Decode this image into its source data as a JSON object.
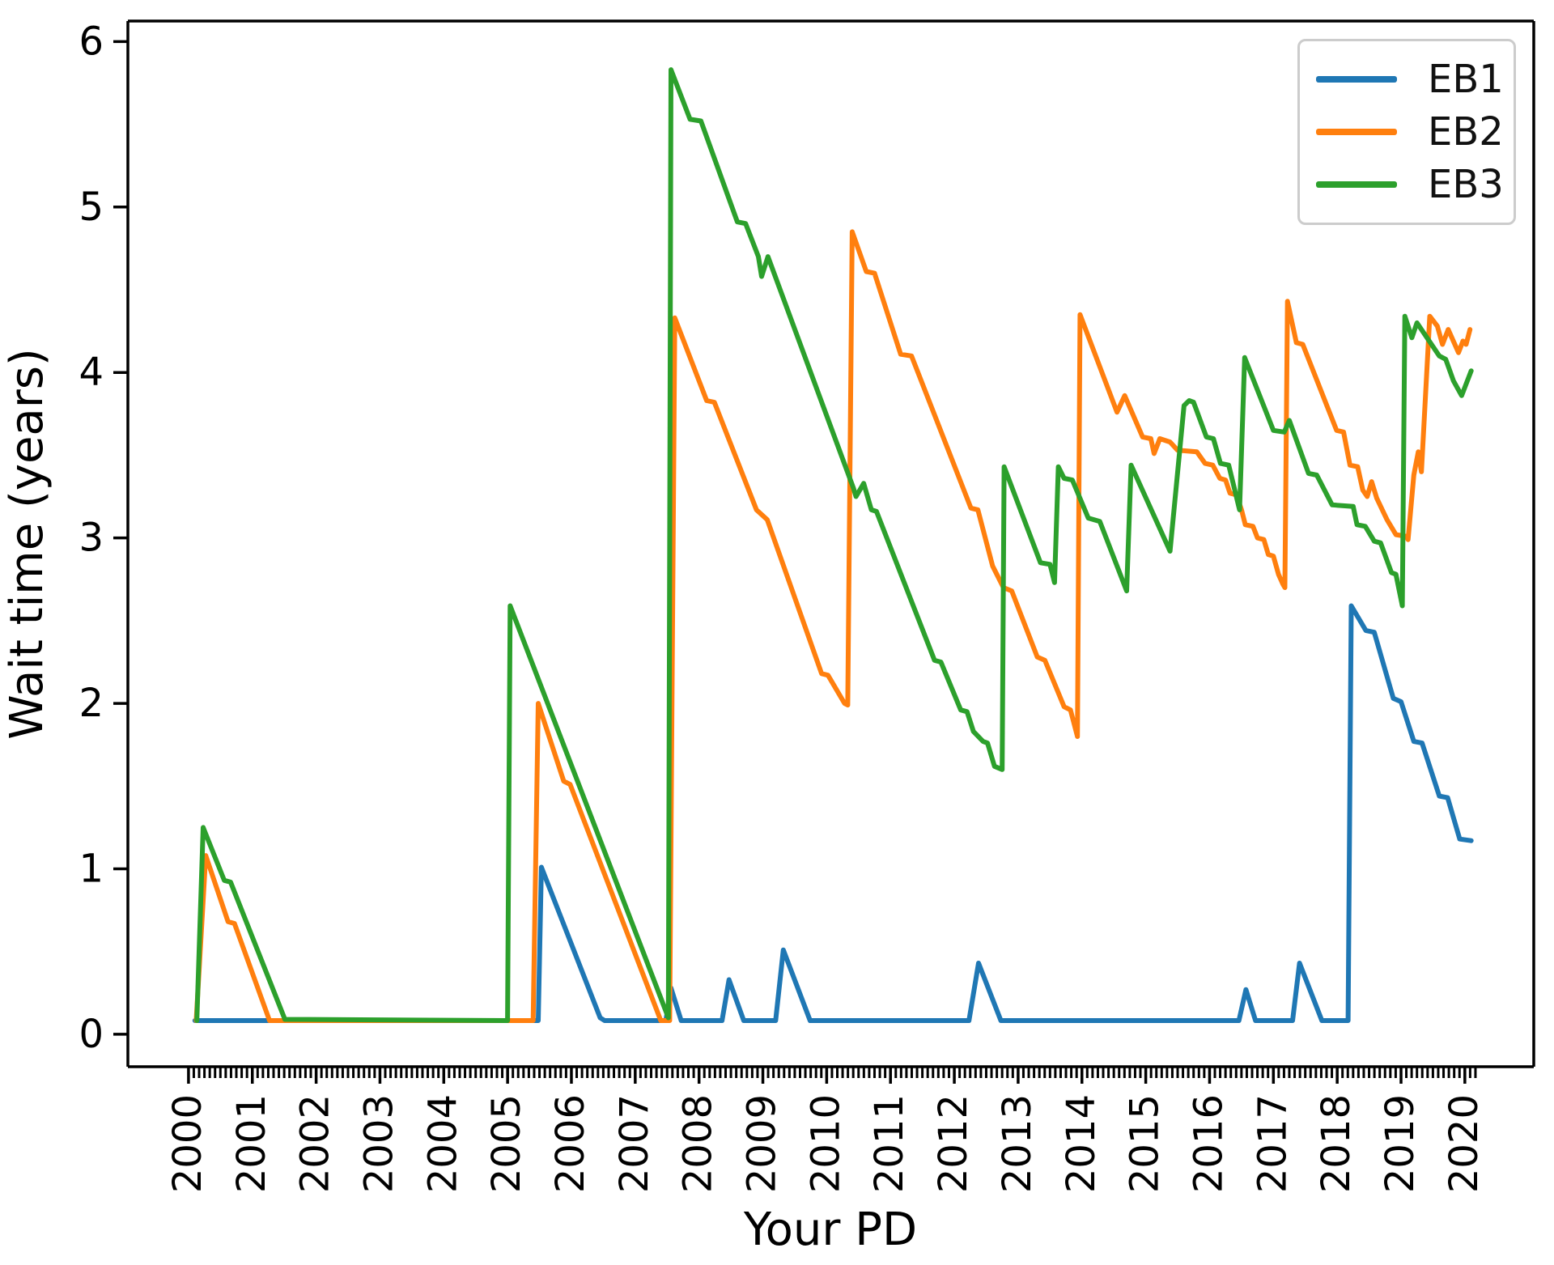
{
  "figure": {
    "background": "#ffffff"
  },
  "axes": {
    "xlabel": "Your PD",
    "ylabel": "Wait time (years)",
    "y_tick_labels": [
      "0",
      "1",
      "2",
      "3",
      "4",
      "5",
      "6"
    ],
    "x_tick_labels": [
      "2000",
      "2001",
      "2002",
      "2003",
      "2004",
      "2005",
      "2006",
      "2007",
      "2008",
      "2009",
      "2010",
      "2011",
      "2012",
      "2013",
      "2014",
      "2015",
      "2016",
      "2017",
      "2018",
      "2019",
      "2020"
    ]
  },
  "legend": {
    "position": "upper right",
    "items": [
      {
        "label": "EB1",
        "color": "#1f77b4"
      },
      {
        "label": "EB2",
        "color": "#ff7f0e"
      },
      {
        "label": "EB3",
        "color": "#2ca02c"
      }
    ]
  },
  "chart_data": {
    "type": "line",
    "title": "",
    "xlabel": "Your PD",
    "ylabel": "Wait time (years)",
    "xlim": [
      1999.05,
      2021.08
    ],
    "ylim": [
      -0.196,
      6.124
    ],
    "x_ticks": [
      2000,
      2001,
      2002,
      2003,
      2004,
      2005,
      2006,
      2007,
      2008,
      2009,
      2010,
      2011,
      2012,
      2013,
      2014,
      2015,
      2016,
      2017,
      2018,
      2019,
      2020
    ],
    "y_ticks": [
      0,
      1,
      2,
      3,
      4,
      5,
      6
    ],
    "x_minor_tick_step_years": 0.083333,
    "x_minor_tick_range": [
      2000.083,
      2020.17
    ],
    "grid": false,
    "line_width": 6,
    "series": [
      {
        "name": "EB1",
        "color": "#1f77b4",
        "points": [
          [
            2000.1,
            0.083
          ],
          [
            2005.48,
            0.083
          ],
          [
            2005.53,
            1.01
          ],
          [
            2006.45,
            0.1
          ],
          [
            2006.52,
            0.083
          ],
          [
            2007.48,
            0.083
          ],
          [
            2007.56,
            0.28
          ],
          [
            2007.72,
            0.083
          ],
          [
            2008.36,
            0.083
          ],
          [
            2008.47,
            0.33
          ],
          [
            2008.7,
            0.083
          ],
          [
            2009.2,
            0.083
          ],
          [
            2009.32,
            0.51
          ],
          [
            2009.74,
            0.083
          ],
          [
            2012.23,
            0.083
          ],
          [
            2012.38,
            0.43
          ],
          [
            2012.73,
            0.083
          ],
          [
            2016.46,
            0.083
          ],
          [
            2016.57,
            0.27
          ],
          [
            2016.72,
            0.083
          ],
          [
            2017.3,
            0.083
          ],
          [
            2017.41,
            0.43
          ],
          [
            2017.76,
            0.083
          ],
          [
            2018.17,
            0.083
          ],
          [
            2018.22,
            2.59
          ],
          [
            2018.45,
            2.44
          ],
          [
            2018.58,
            2.43
          ],
          [
            2018.88,
            2.03
          ],
          [
            2019.0,
            2.01
          ],
          [
            2019.2,
            1.77
          ],
          [
            2019.33,
            1.76
          ],
          [
            2019.6,
            1.44
          ],
          [
            2019.73,
            1.43
          ],
          [
            2019.92,
            1.18
          ],
          [
            2020.1,
            1.17
          ]
        ]
      },
      {
        "name": "EB2",
        "color": "#ff7f0e",
        "points": [
          [
            2000.12,
            0.083
          ],
          [
            2000.27,
            1.08
          ],
          [
            2000.62,
            0.68
          ],
          [
            2000.72,
            0.67
          ],
          [
            2001.27,
            0.083
          ],
          [
            2005.4,
            0.083
          ],
          [
            2005.48,
            2.0
          ],
          [
            2005.88,
            1.53
          ],
          [
            2005.98,
            1.51
          ],
          [
            2007.4,
            0.083
          ],
          [
            2007.54,
            0.083
          ],
          [
            2007.62,
            4.33
          ],
          [
            2008.12,
            3.83
          ],
          [
            2008.24,
            3.82
          ],
          [
            2008.9,
            3.17
          ],
          [
            2009.07,
            3.11
          ],
          [
            2009.92,
            2.18
          ],
          [
            2010.02,
            2.17
          ],
          [
            2010.28,
            2.0
          ],
          [
            2010.33,
            1.99
          ],
          [
            2010.4,
            4.85
          ],
          [
            2010.62,
            4.61
          ],
          [
            2010.75,
            4.6
          ],
          [
            2011.16,
            4.11
          ],
          [
            2011.33,
            4.1
          ],
          [
            2012.26,
            3.18
          ],
          [
            2012.37,
            3.17
          ],
          [
            2012.6,
            2.83
          ],
          [
            2012.77,
            2.7
          ],
          [
            2012.9,
            2.68
          ],
          [
            2013.3,
            2.28
          ],
          [
            2013.42,
            2.26
          ],
          [
            2013.72,
            1.98
          ],
          [
            2013.82,
            1.96
          ],
          [
            2013.93,
            1.8
          ],
          [
            2013.97,
            4.35
          ],
          [
            2014.55,
            3.76
          ],
          [
            2014.67,
            3.86
          ],
          [
            2014.95,
            3.61
          ],
          [
            2015.08,
            3.6
          ],
          [
            2015.13,
            3.51
          ],
          [
            2015.22,
            3.6
          ],
          [
            2015.38,
            3.58
          ],
          [
            2015.5,
            3.53
          ],
          [
            2015.8,
            3.52
          ],
          [
            2015.93,
            3.45
          ],
          [
            2016.05,
            3.44
          ],
          [
            2016.16,
            3.36
          ],
          [
            2016.25,
            3.35
          ],
          [
            2016.32,
            3.27
          ],
          [
            2016.42,
            3.26
          ],
          [
            2016.5,
            3.17
          ],
          [
            2016.56,
            3.08
          ],
          [
            2016.68,
            3.07
          ],
          [
            2016.75,
            3.0
          ],
          [
            2016.85,
            2.99
          ],
          [
            2016.92,
            2.9
          ],
          [
            2017.0,
            2.89
          ],
          [
            2017.08,
            2.78
          ],
          [
            2017.15,
            2.72
          ],
          [
            2017.18,
            2.7
          ],
          [
            2017.22,
            4.43
          ],
          [
            2017.36,
            4.18
          ],
          [
            2017.46,
            4.17
          ],
          [
            2017.99,
            3.65
          ],
          [
            2018.1,
            3.64
          ],
          [
            2018.2,
            3.44
          ],
          [
            2018.32,
            3.43
          ],
          [
            2018.4,
            3.29
          ],
          [
            2018.47,
            3.25
          ],
          [
            2018.54,
            3.34
          ],
          [
            2018.62,
            3.24
          ],
          [
            2018.78,
            3.11
          ],
          [
            2018.92,
            3.02
          ],
          [
            2019.08,
            3.01
          ],
          [
            2019.11,
            2.99
          ],
          [
            2019.2,
            3.38
          ],
          [
            2019.27,
            3.52
          ],
          [
            2019.32,
            3.4
          ],
          [
            2019.45,
            4.34
          ],
          [
            2019.57,
            4.28
          ],
          [
            2019.65,
            4.17
          ],
          [
            2019.74,
            4.26
          ],
          [
            2019.9,
            4.12
          ],
          [
            2019.97,
            4.19
          ],
          [
            2020.02,
            4.17
          ],
          [
            2020.08,
            4.26
          ]
        ]
      },
      {
        "name": "EB3",
        "color": "#2ca02c",
        "points": [
          [
            2000.13,
            0.083
          ],
          [
            2000.23,
            1.25
          ],
          [
            2000.56,
            0.93
          ],
          [
            2000.66,
            0.92
          ],
          [
            2001.51,
            0.09
          ],
          [
            2005.0,
            0.083
          ],
          [
            2005.04,
            2.59
          ],
          [
            2007.52,
            0.1
          ],
          [
            2007.56,
            5.83
          ],
          [
            2007.86,
            5.53
          ],
          [
            2008.03,
            5.52
          ],
          [
            2008.6,
            4.91
          ],
          [
            2008.73,
            4.9
          ],
          [
            2008.93,
            4.7
          ],
          [
            2008.98,
            4.58
          ],
          [
            2009.08,
            4.7
          ],
          [
            2010.42,
            3.3
          ],
          [
            2010.46,
            3.25
          ],
          [
            2010.58,
            3.33
          ],
          [
            2010.7,
            3.17
          ],
          [
            2010.78,
            3.16
          ],
          [
            2011.69,
            2.26
          ],
          [
            2011.79,
            2.25
          ],
          [
            2012.1,
            1.96
          ],
          [
            2012.2,
            1.95
          ],
          [
            2012.3,
            1.83
          ],
          [
            2012.45,
            1.77
          ],
          [
            2012.52,
            1.76
          ],
          [
            2012.63,
            1.62
          ],
          [
            2012.75,
            1.6
          ],
          [
            2012.78,
            3.43
          ],
          [
            2013.35,
            2.85
          ],
          [
            2013.5,
            2.84
          ],
          [
            2013.57,
            2.73
          ],
          [
            2013.63,
            3.43
          ],
          [
            2013.72,
            3.36
          ],
          [
            2013.85,
            3.35
          ],
          [
            2014.1,
            3.12
          ],
          [
            2014.28,
            3.1
          ],
          [
            2014.7,
            2.68
          ],
          [
            2014.77,
            3.44
          ],
          [
            2015.38,
            2.92
          ],
          [
            2015.6,
            3.8
          ],
          [
            2015.68,
            3.83
          ],
          [
            2015.75,
            3.82
          ],
          [
            2015.95,
            3.61
          ],
          [
            2016.06,
            3.6
          ],
          [
            2016.17,
            3.45
          ],
          [
            2016.3,
            3.44
          ],
          [
            2016.47,
            3.17
          ],
          [
            2016.55,
            4.09
          ],
          [
            2017.0,
            3.65
          ],
          [
            2017.17,
            3.64
          ],
          [
            2017.25,
            3.71
          ],
          [
            2017.55,
            3.39
          ],
          [
            2017.68,
            3.38
          ],
          [
            2017.92,
            3.2
          ],
          [
            2018.25,
            3.19
          ],
          [
            2018.31,
            3.08
          ],
          [
            2018.44,
            3.07
          ],
          [
            2018.58,
            2.98
          ],
          [
            2018.68,
            2.97
          ],
          [
            2018.85,
            2.79
          ],
          [
            2018.92,
            2.78
          ],
          [
            2019.02,
            2.59
          ],
          [
            2019.06,
            4.34
          ],
          [
            2019.17,
            4.21
          ],
          [
            2019.25,
            4.3
          ],
          [
            2019.6,
            4.1
          ],
          [
            2019.7,
            4.08
          ],
          [
            2019.82,
            3.95
          ],
          [
            2019.95,
            3.86
          ],
          [
            2020.1,
            4.01
          ]
        ]
      }
    ]
  }
}
